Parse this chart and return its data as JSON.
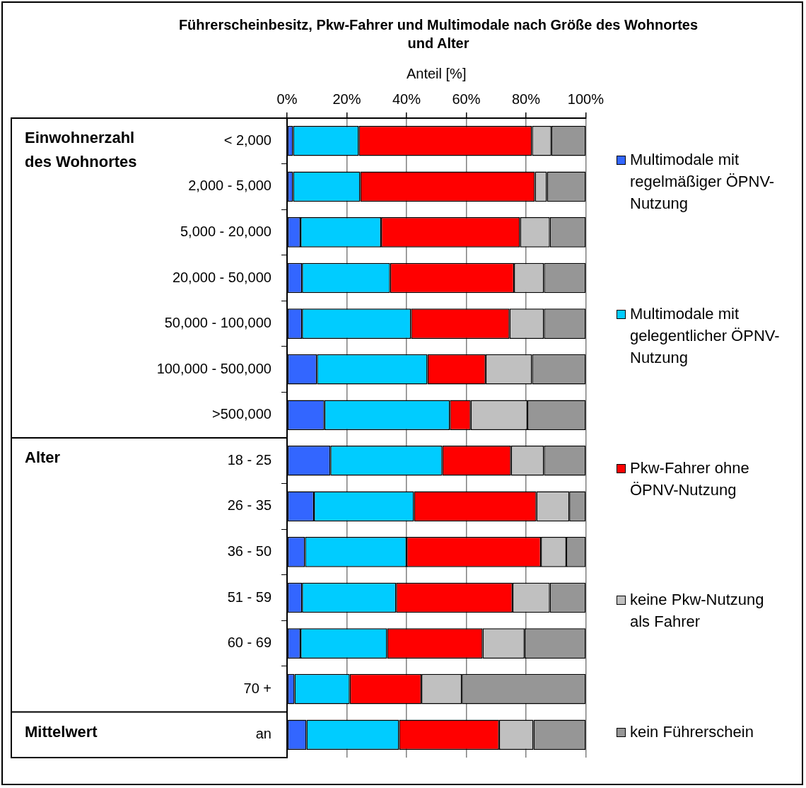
{
  "chart_data": {
    "type": "bar",
    "orientation": "horizontal",
    "stacked": true,
    "title": "Führerscheinbesitz, Pkw-Fahrer und Multimodale nach Größe des Wohnortes und Alter",
    "xlabel": "Anteil [%]",
    "categories": [
      "< 2,000",
      "2,000 - 5,000",
      "5,000 - 20,000",
      "20,000 - 50,000",
      "50,000 - 100,000",
      "100,000 - 500,000",
      ">500,000",
      "18 - 25",
      "26 - 35",
      "36 - 50",
      "51 - 59",
      "60 - 69",
      "70 +",
      "an"
    ],
    "series": [
      {
        "name": "Multimodale mit regelmäßiger ÖPNV-Nutzung",
        "color": "#3366ff",
        "values": [
          2,
          2,
          4.5,
          5,
          5,
          10,
          12.5,
          14.5,
          9,
          6,
          5,
          4.5,
          2.5,
          6.5
        ]
      },
      {
        "name": "Multimodale mit gelegentlicher ÖPNV-Nutzung",
        "color": "#00ccff",
        "values": [
          22,
          22.5,
          27,
          29.5,
          36.5,
          37,
          42,
          37.5,
          33.5,
          34,
          31.5,
          29,
          18.5,
          31
        ]
      },
      {
        "name": "Pkw-Fahrer ohne ÖPNV-Nutzung",
        "color": "#ff0000",
        "values": [
          58,
          58.5,
          46.5,
          41.5,
          33,
          19.5,
          7,
          23,
          41,
          45,
          39,
          32,
          24,
          33.5
        ]
      },
      {
        "name": "keine Pkw-Nutzung als Fahrer",
        "color": "#c0c0c0",
        "values": [
          6.5,
          4,
          10,
          10,
          11.5,
          15.5,
          19,
          11,
          11,
          8.5,
          12.5,
          14,
          13.5,
          11.5
        ]
      },
      {
        "name": "kein Führerschein",
        "color": "#969696",
        "values": [
          11.5,
          13,
          12,
          14,
          14,
          18,
          19.5,
          14,
          5.5,
          6.5,
          12,
          20.5,
          41.5,
          17.5
        ]
      }
    ],
    "xlim": [
      0,
      100
    ],
    "xticks": [
      {
        "value": 0,
        "label": "0%"
      },
      {
        "value": 20,
        "label": "20%"
      },
      {
        "value": 40,
        "label": "40%"
      },
      {
        "value": 60,
        "label": "60%"
      },
      {
        "value": 80,
        "label": "80%"
      },
      {
        "value": 100,
        "label": "100%"
      }
    ],
    "annotations": [
      "Einwohnerzahl des Wohnortes",
      "Alter",
      "Mittelwert"
    ],
    "grid": "x",
    "legend": "right"
  }
}
